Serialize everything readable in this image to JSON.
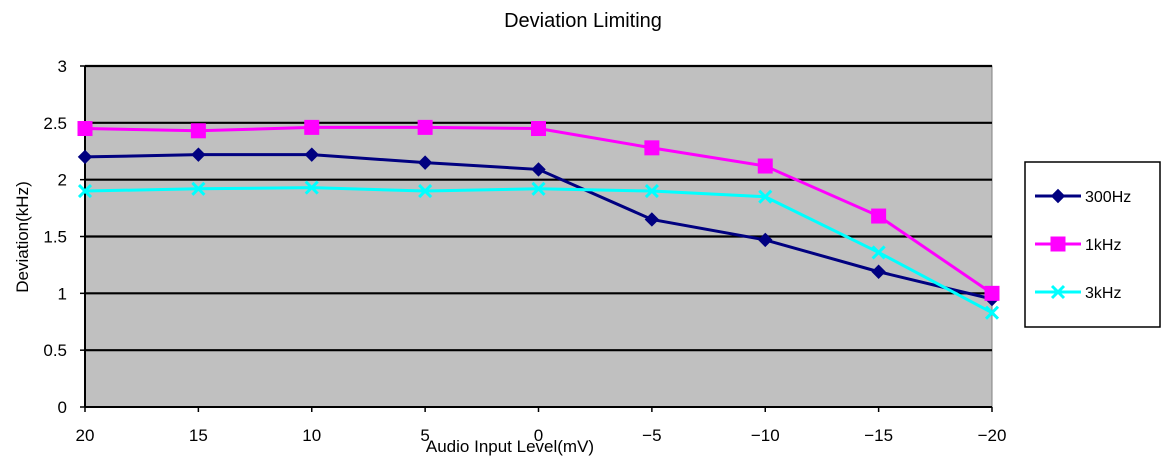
{
  "chart_data": {
    "type": "line",
    "title": "Deviation Limiting",
    "xlabel": "Audio Input Level(mV)",
    "ylabel": "Deviation(kHz)",
    "categories": [
      "20",
      "15",
      "10",
      "5",
      "0",
      "−5",
      "−10",
      "−15",
      "−20"
    ],
    "y_ticks": [
      "0",
      "0.5",
      "1",
      "1.5",
      "2",
      "2.5",
      "3"
    ],
    "ylim": [
      0,
      3
    ],
    "grid": true,
    "legend_position": "right",
    "plot_background": "#c0c0c0",
    "series": [
      {
        "name": "300Hz",
        "color": "#000080",
        "marker": "diamond",
        "values": [
          2.2,
          2.22,
          2.22,
          2.15,
          2.09,
          1.65,
          1.47,
          1.19,
          0.95
        ]
      },
      {
        "name": "1kHz",
        "color": "#ff00ff",
        "marker": "square",
        "values": [
          2.45,
          2.43,
          2.46,
          2.46,
          2.45,
          2.28,
          2.12,
          1.68,
          1.0
        ]
      },
      {
        "name": "3kHz",
        "color": "#00ffff",
        "marker": "x",
        "values": [
          1.9,
          1.92,
          1.93,
          1.9,
          1.92,
          1.9,
          1.85,
          1.36,
          0.83
        ]
      }
    ]
  }
}
